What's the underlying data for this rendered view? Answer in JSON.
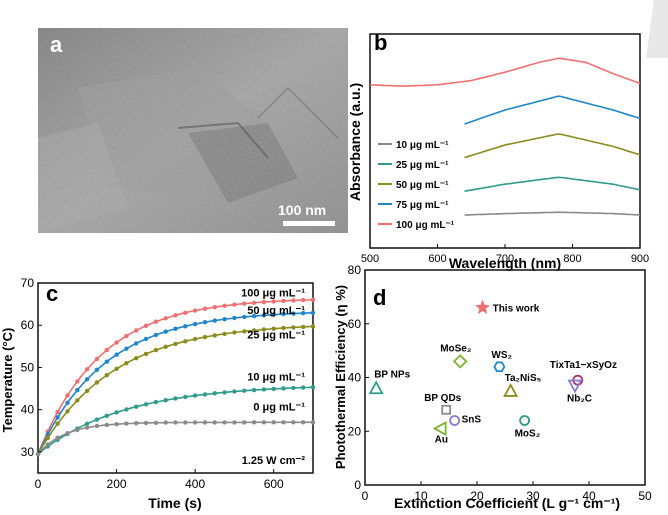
{
  "panel_a": {
    "label": "a",
    "scalebar": "100 nm"
  },
  "panel_b": {
    "label": "b",
    "xlabel": "Wavelength (nm)",
    "ylabel": "Absorbance (a.u.)",
    "xticks": [
      "500",
      "600",
      "700",
      "800",
      "900"
    ],
    "legend": [
      "10 μg mL⁻¹",
      "25 μg mL⁻¹",
      "50 μg mL⁻¹",
      "75 μg mL⁻¹",
      "100 μg mL⁻¹"
    ]
  },
  "panel_c": {
    "label": "c",
    "xlabel": "Time (s)",
    "ylabel": "Temperature (°C)",
    "xticks": [
      "0",
      "200",
      "400",
      "600"
    ],
    "yticks": [
      "30",
      "40",
      "50",
      "60",
      "70"
    ],
    "note": "1.25 W cm⁻²",
    "labels": [
      "100 μg mL⁻¹",
      "50 μg mL⁻¹",
      "25 μg mL⁻¹",
      "10 μg mL⁻¹",
      "0 μg mL⁻¹"
    ]
  },
  "panel_d": {
    "label": "d",
    "xlabel": "Extinction Coefficient (L g⁻¹ cm⁻¹)",
    "ylabel": "Photothermal Efficiency (η %)",
    "xticks": [
      "0",
      "10",
      "20",
      "30",
      "40",
      "50"
    ],
    "yticks": [
      "0",
      "20",
      "40",
      "60",
      "80"
    ],
    "legend": "This work"
  },
  "chart_data": [
    {
      "type": "line",
      "panel": "b",
      "xlabel": "Wavelength (nm)",
      "ylabel": "Absorbance (a.u.)",
      "xlim": [
        500,
        900
      ],
      "series": [
        {
          "name": "10 μg mL⁻¹",
          "color": "#8a8a8a",
          "x": [
            640,
            700,
            780,
            860,
            900
          ],
          "y": [
            0.05,
            0.06,
            0.07,
            0.06,
            0.05
          ]
        },
        {
          "name": "25 μg mL⁻¹",
          "color": "#2e9b8c",
          "x": [
            640,
            700,
            780,
            860,
            900
          ],
          "y": [
            0.22,
            0.27,
            0.32,
            0.27,
            0.23
          ]
        },
        {
          "name": "50 μg mL⁻¹",
          "color": "#8c8c1e",
          "x": [
            640,
            700,
            780,
            860,
            900
          ],
          "y": [
            0.46,
            0.55,
            0.63,
            0.54,
            0.48
          ]
        },
        {
          "name": "75 μg mL⁻¹",
          "color": "#1f86c8",
          "x": [
            640,
            700,
            780,
            860,
            900
          ],
          "y": [
            0.7,
            0.8,
            0.9,
            0.8,
            0.74
          ]
        },
        {
          "name": "100 μg mL⁻¹",
          "color": "#f07070",
          "x": [
            500,
            550,
            600,
            650,
            700,
            750,
            780,
            820,
            860,
            900
          ],
          "y": [
            0.98,
            0.97,
            0.98,
            1.01,
            1.07,
            1.14,
            1.17,
            1.14,
            1.06,
            0.99
          ]
        }
      ]
    },
    {
      "type": "line",
      "panel": "c",
      "xlabel": "Time (s)",
      "ylabel": "Temperature (°C)",
      "xlim": [
        0,
        700
      ],
      "ylim": [
        25,
        70
      ],
      "series": [
        {
          "name": "100 μg mL⁻¹",
          "color": "#f07070",
          "T0": 29.5,
          "Tmax": 66.5,
          "tau": 160
        },
        {
          "name": "50 μg mL⁻¹",
          "color": "#1f86c8",
          "T0": 29.5,
          "Tmax": 63.5,
          "tau": 170
        },
        {
          "name": "25 μg mL⁻¹",
          "color": "#8c8c1e",
          "T0": 29.5,
          "Tmax": 60.5,
          "tau": 190
        },
        {
          "name": "10 μg mL⁻¹",
          "color": "#2e9b8c",
          "T0": 29.5,
          "Tmax": 46,
          "tau": 220
        },
        {
          "name": "0 μg mL⁻¹",
          "color": "#8a8a8a",
          "T0": 29.5,
          "Tmax": 37,
          "tau": 70
        }
      ]
    },
    {
      "type": "scatter",
      "panel": "d",
      "xlabel": "Extinction Coefficient (L g⁻¹ cm⁻¹)",
      "ylabel": "Photothermal Efficiency (η %)",
      "xlim": [
        0,
        50
      ],
      "ylim": [
        0,
        80
      ],
      "points": [
        {
          "label": "This work",
          "x": 21,
          "y": 66,
          "marker": "star",
          "color": "#f07070"
        },
        {
          "label": "BP NPs",
          "x": 2,
          "y": 36,
          "marker": "triangle",
          "color": "#2e9b8c"
        },
        {
          "label": "MoSe₂",
          "x": 17,
          "y": 46,
          "marker": "diamond",
          "color": "#7ab32e"
        },
        {
          "label": "WS₂",
          "x": 24,
          "y": 44,
          "marker": "hexagon",
          "color": "#1f86c8"
        },
        {
          "label": "Ta₂NiS₅",
          "x": 26,
          "y": 35,
          "marker": "triangle",
          "color": "#8c8c1e"
        },
        {
          "label": "TixTa1−xSyOz",
          "x": 38,
          "y": 39,
          "marker": "circle",
          "color": "#b03060"
        },
        {
          "label": "Nb₂C",
          "x": 37.5,
          "y": 37,
          "marker": "triangle-down",
          "color": "#8a7ad0"
        },
        {
          "label": "BP QDs",
          "x": 14.5,
          "y": 28,
          "marker": "square",
          "color": "#8a8a8a"
        },
        {
          "label": "SnS",
          "x": 16,
          "y": 24,
          "marker": "circle",
          "color": "#8a7ad0"
        },
        {
          "label": "Au",
          "x": 13.5,
          "y": 21,
          "marker": "triangle-left",
          "color": "#7ab32e"
        },
        {
          "label": "MoS₂",
          "x": 28.5,
          "y": 24,
          "marker": "circle",
          "color": "#2e9b8c"
        }
      ]
    }
  ]
}
